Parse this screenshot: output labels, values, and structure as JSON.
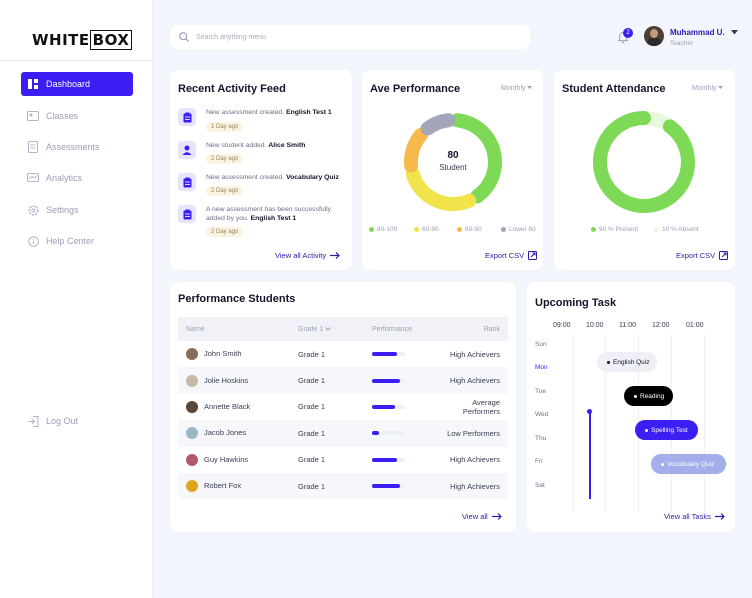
{
  "brand": {
    "logo_text_a": "WHITE",
    "logo_text_b": "BOX"
  },
  "sidebar": {
    "items": [
      {
        "label": "Dashboard",
        "icon": "dashboard-icon",
        "active": true
      },
      {
        "label": "Classes",
        "icon": "classes-icon"
      },
      {
        "label": "Assessments",
        "icon": "assessments-icon"
      },
      {
        "label": "Analytics",
        "icon": "analytics-icon"
      },
      {
        "label": "Settings",
        "icon": "settings-icon"
      },
      {
        "label": "Help Center",
        "icon": "help-icon"
      }
    ],
    "logout_label": "Log Out"
  },
  "header": {
    "search_placeholder": "Search anything menu",
    "notification_count": "2",
    "user_name": "Muhammad U.",
    "user_role": "Teacher"
  },
  "activity": {
    "title": "Recent Activity Feed",
    "items": [
      {
        "text": "New assessment created.",
        "bold": "English Test 1",
        "date": "1 Day ago",
        "icon": "clipboard-icon"
      },
      {
        "text": "New student added.",
        "bold": "Alice Smith",
        "date": "2 Day ago",
        "icon": "user-icon"
      },
      {
        "text": "New assessment created.",
        "bold": "Vocabulary Quiz",
        "date": "2 Day ago",
        "icon": "clipboard-icon"
      },
      {
        "text": "A new assessment has been successfully added by you.",
        "bold": "English Test 1",
        "date": "2 Day ago",
        "icon": "clipboard-icon"
      }
    ],
    "link_label": "View all Activity"
  },
  "performance": {
    "title": "Ave Performance",
    "period": "Monthly",
    "center_value": "80",
    "center_label": "Student",
    "legend": [
      {
        "label": "80-100",
        "color": "#7ed957"
      },
      {
        "label": "60-90",
        "color": "#f1e44b"
      },
      {
        "label": "60-90",
        "color": "#f6b94a"
      },
      {
        "label": "Lower 60",
        "color": "#a3a6b8"
      }
    ],
    "segments": [
      {
        "value": 42,
        "color": "#7ed957"
      },
      {
        "value": 30,
        "color": "#f1e44b"
      },
      {
        "value": 16,
        "color": "#f6b94a"
      },
      {
        "value": 12,
        "color": "#a3a6b8"
      }
    ],
    "export_label": "Export CSV"
  },
  "attendance": {
    "title": "Student Attendance",
    "period": "Monthly",
    "legend": [
      {
        "label": "90 % Present",
        "color": "#7ed957"
      },
      {
        "label": "10 % Absent",
        "color": "#e7f8df"
      }
    ],
    "present_fraction": 0.9,
    "export_label": "Export CSV"
  },
  "students": {
    "title": "Performance Students",
    "columns": {
      "name": "Name",
      "grade": "Grade 1",
      "performance": "Performance",
      "rank": "Rank"
    },
    "rows": [
      {
        "name": "John Smith",
        "grade": "Grade 1",
        "perf": 0.75,
        "rank": "High Achievers",
        "avatar": "#8a6d5b"
      },
      {
        "name": "Jolie Hoskins",
        "grade": "Grade 1",
        "perf": 0.85,
        "rank": "High Achievers",
        "avatar": "#c7b8a8"
      },
      {
        "name": "Annette Black",
        "grade": "Grade 1",
        "perf": 0.7,
        "rank": "Average Performers",
        "avatar": "#5b4638"
      },
      {
        "name": "Jacob Jones",
        "grade": "Grade 1",
        "perf": 0.2,
        "rank": "Low Performers",
        "avatar": "#9bb7c8"
      },
      {
        "name": "Guy Hawkins",
        "grade": "Grade 1",
        "perf": 0.75,
        "rank": "High Achievers",
        "avatar": "#b05a6b"
      },
      {
        "name": "Robert Fox",
        "grade": "Grade 1",
        "perf": 0.85,
        "rank": "High Achievers",
        "avatar": "#e0a41e"
      }
    ],
    "link_label": "View all"
  },
  "tasks": {
    "title": "Upcoming Task",
    "hours": [
      "09:00",
      "10:00",
      "11:00",
      "12:00",
      "01:00"
    ],
    "days": [
      "Sun",
      "Mon",
      "Tue",
      "Wed",
      "Thu",
      "Fri",
      "Sat"
    ],
    "items": [
      {
        "label": "English Quiz"
      },
      {
        "label": "Reading"
      },
      {
        "label": "Spelling Test"
      },
      {
        "label": "Vocabulary Quiz"
      }
    ],
    "link_label": "View all Tasks"
  }
}
